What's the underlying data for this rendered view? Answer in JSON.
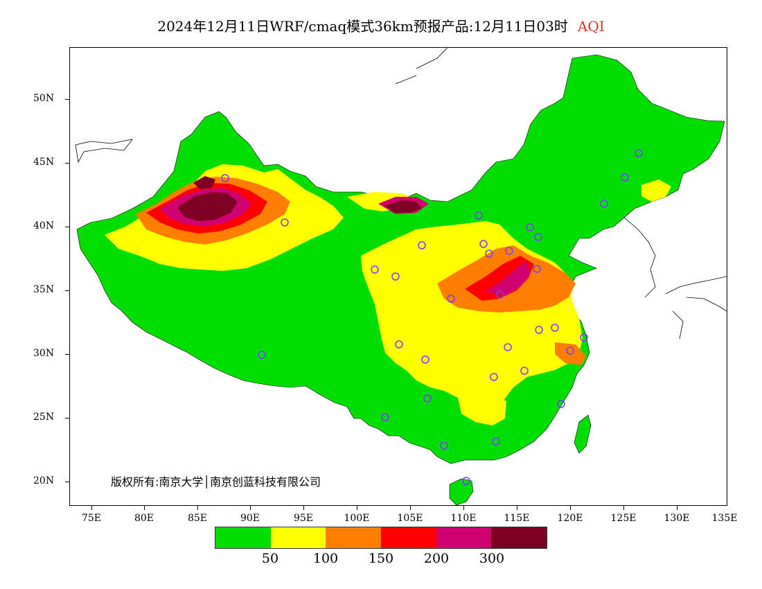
{
  "title": {
    "main": "2024年12月11日WRF/cmaq模式36km预报产品:12月11日03时",
    "product": "AQI"
  },
  "lat_labels": [
    "50N",
    "45N",
    "40N",
    "35N",
    "30N",
    "25N",
    "20N"
  ],
  "lon_labels": [
    "75E",
    "80E",
    "85E",
    "90E",
    "95E",
    "100E",
    "105E",
    "110E",
    "115E",
    "120E",
    "125E",
    "130E",
    "135E"
  ],
  "copyright": "版权所有:南京大学│南京创蓝科技有限公司",
  "legend": {
    "colors": [
      "#00dd00",
      "#ffff00",
      "#ff7e00",
      "#ff0000",
      "#d10070",
      "#7e0023"
    ],
    "labels": [
      "50",
      "100",
      "150",
      "200",
      "300"
    ]
  },
  "colors": {
    "good": "#00dd00",
    "moderate": "#ffff00",
    "unhealthy_sensitive": "#ff7e00",
    "unhealthy": "#ff0000",
    "very_unhealthy": "#d10070",
    "hazardous": "#7e0023",
    "station_marker": "#7a3cff"
  }
}
